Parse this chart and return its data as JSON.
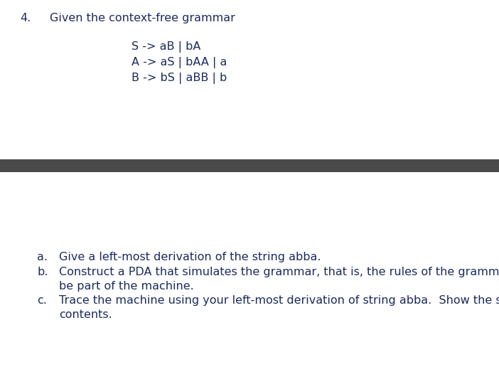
{
  "question_number": "4.",
  "question_text": "Given the context-free grammar",
  "grammar_lines": [
    "S -> aB | bA",
    "A -> aS | bAA | a",
    "B -> bS | aBB | b"
  ],
  "divider_color": "#4a4a4a",
  "sub_questions": [
    {
      "label": "a.",
      "text": "Give a left-most derivation of the string abba."
    },
    {
      "label": "b.",
      "text": "Construct a PDA that simulates the grammar, that is, the rules of the grammar must",
      "text2": "be part of the machine."
    },
    {
      "label": "c.",
      "text": "Trace the machine using your left-most derivation of string abba.  Show the stack",
      "text2": "contents."
    }
  ],
  "font_size": 11.5,
  "text_color": "#1c2b5e",
  "background_color": "#ffffff",
  "fig_width": 7.02,
  "fig_height": 5.16,
  "dpi": 100
}
